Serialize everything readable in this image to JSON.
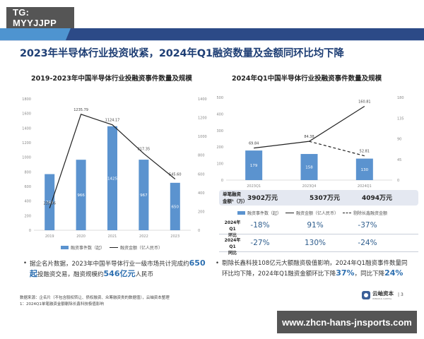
{
  "badge_top": "TG: MYYJJPP",
  "badge_bottom": "www.zhcn-hans-jnsports.com",
  "title": "2023年半导体行业投资收紧，2024年Q1融资数量及金额同环比均下降",
  "colors": {
    "brand_dark": "#2c4a87",
    "brand_light": "#4e94d0",
    "bar": "#5b93cf",
    "highlight": "#2d6fb0"
  },
  "chart_data": [
    {
      "type": "bar+line",
      "title": "2019-2023年中国半导体行业投融资事件数量及规模",
      "categories": [
        "2019",
        "2020",
        "2021",
        "2022",
        "2023"
      ],
      "series": [
        {
          "name": "融资事件数（起）",
          "type": "bar",
          "axis": "left",
          "values": [
            769,
            966,
            1425,
            967,
            650
          ]
        },
        {
          "name": "融资金额（亿人民币）",
          "type": "line",
          "axis": "right",
          "values": [
            235.96,
            1235.79,
            1124.17,
            817.35,
            545.6
          ]
        }
      ],
      "y_left": {
        "min": 0,
        "max": 1800,
        "step": 200,
        "ticks": [
          0,
          200,
          400,
          600,
          800,
          1000,
          1200,
          1400,
          1600,
          1800
        ]
      },
      "y_right": {
        "min": 0,
        "max": 1400,
        "step": 200,
        "ticks": [
          0,
          200,
          400,
          600,
          800,
          1000,
          1200,
          1400
        ]
      },
      "legend_position": "bottom"
    },
    {
      "type": "bar+line",
      "title": "2024年Q1中国半导体行业投融资事件数量及规模",
      "categories": [
        "2023Q1",
        "2023Q4",
        "2024Q1"
      ],
      "series": [
        {
          "name": "融资事件数（起）",
          "type": "bar",
          "axis": "left",
          "values": [
            179,
            158,
            130
          ]
        },
        {
          "name": "融资金额（亿人民币）",
          "type": "line",
          "axis": "right",
          "values": [
            69.84,
            84.38,
            160.81
          ]
        },
        {
          "name": "剔除长鑫融资金额",
          "type": "line-dashed",
          "axis": "right",
          "values": [
            null,
            84.38,
            52.81
          ]
        }
      ],
      "y_left": {
        "min": 0,
        "max": 500,
        "step": 100,
        "ticks": [
          0,
          100,
          200,
          300,
          400,
          500
        ]
      },
      "y_right": {
        "min": 0,
        "max": 180,
        "step": 45,
        "ticks": [
          0,
          45,
          90,
          135,
          180
        ]
      },
      "legend_position": "bottom"
    }
  ],
  "left_chart": {
    "title": "2019-2023年中国半导体行业投融资事件数量及规模",
    "legend": {
      "bar": "融资事件数（起）",
      "line": "融资金额（亿人民币）"
    },
    "bar_labels": [
      "769",
      "966",
      "1425",
      "967",
      "650"
    ],
    "line_labels": [
      "235.96",
      "1235.79",
      "1124.17",
      "817.35",
      "545.60"
    ],
    "x_labels": [
      "2019",
      "2020",
      "2021",
      "2022",
      "2023"
    ],
    "y_left_labels": [
      "0",
      "200",
      "400",
      "600",
      "800",
      "1000",
      "1200",
      "1400",
      "1600",
      "1800"
    ],
    "y_right_labels": [
      "0",
      "200",
      "400",
      "600",
      "800",
      "1000",
      "1200",
      "1400"
    ]
  },
  "right_chart": {
    "title": "2024年Q1中国半导体行业投融资事件数量及规模",
    "legend": {
      "bar": "融资事件数（起）",
      "line": "融资金额（亿人民币）",
      "dashed": "剔除长鑫融资金额"
    },
    "bar_labels": [
      "179",
      "158",
      "130"
    ],
    "line_labels": [
      "69.84",
      "84.38",
      "160.81",
      "52.81"
    ],
    "x_labels": [
      "2023Q1",
      "2023Q4",
      "2024Q1"
    ],
    "y_left_labels": [
      "0",
      "100",
      "200",
      "300",
      "400",
      "500"
    ],
    "y_right_labels": [
      "0",
      "45",
      "90",
      "135",
      "180"
    ]
  },
  "single_deal": {
    "label_line1": "单笔融资",
    "label_line2": "金额¹（万）",
    "values": [
      "3902万元",
      "5307万元",
      "4094万元"
    ]
  },
  "comparison": [
    {
      "label_line1": "2024年Q1",
      "label_line2": "环比",
      "values": [
        "-18%",
        "91%",
        "-37%"
      ]
    },
    {
      "label_line1": "2024年Q1",
      "label_line2": "同比",
      "values": [
        "-27%",
        "130%",
        "-24%"
      ]
    }
  ],
  "bullet_left": {
    "dot": "•",
    "text1": "据企名片数据，2023年中国半导体行业一级市场共计完成约",
    "hl1": "650起",
    "text2": "投融资交易，融资规模约",
    "hl2": "546亿元",
    "text3": "人民币"
  },
  "bullet_right": {
    "dot": "•",
    "text1": "剔除长鑫科技108亿元大额融资极值影响，2024年Q1融资事件数量同环比均下降，2024年Q1融资金额环比下降",
    "hl1": "37%",
    "text2": "，同比下降",
    "hl2": "24%"
  },
  "footnote": {
    "line1": "数据来源：企名片（不包含股权转让、债权融资、众筹融资类的数据值），云岫资本整理",
    "line2": "1：2024Q1单笔融资金额剔除长鑫科技极值影响"
  },
  "logo": {
    "name": "云岫资本",
    "sub": "WINSOUL CAPITAL",
    "page": "3"
  }
}
